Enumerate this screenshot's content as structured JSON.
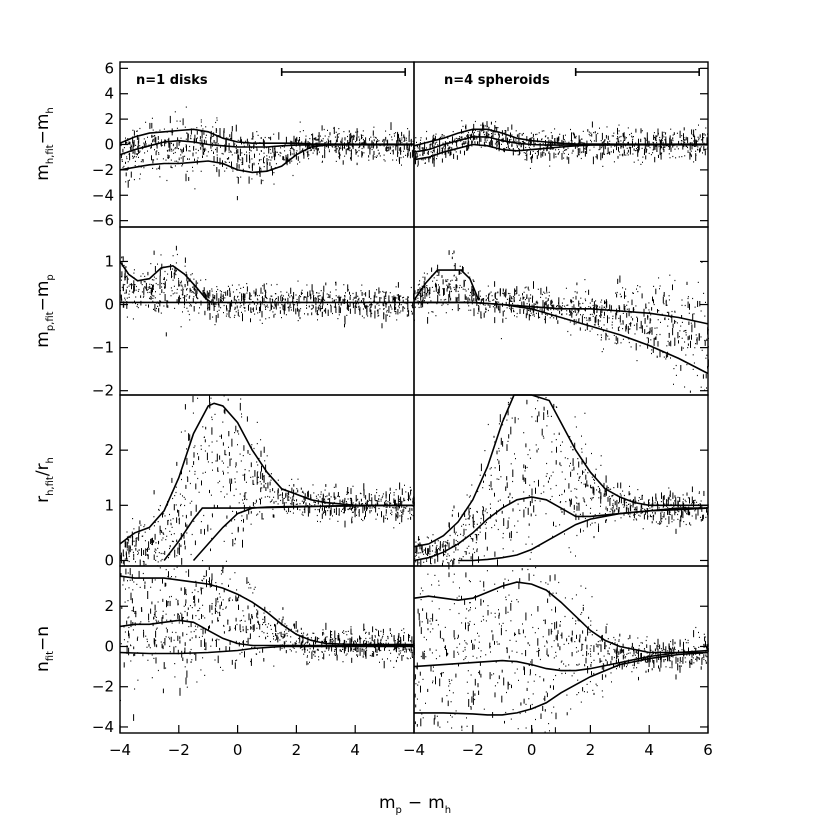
{
  "figure": {
    "xlabel": "m",
    "xlabel_sub_p": "p",
    "xlabel_minus": "−",
    "xlabel_sub_h": "h",
    "colors": {
      "ink": "#000000",
      "background": "#ffffff"
    }
  },
  "chart_data": [
    {
      "type": "scatter",
      "column": "left",
      "row": 1,
      "title": "n=1 disks",
      "ylabel_main": "m",
      "ylabel_sub": "h,fit",
      "ylabel_tail": "−m",
      "ylabel_tail_sub": "h",
      "xlim": [
        -4,
        6
      ],
      "ylim": [
        -6.5,
        6.5
      ],
      "yticks": [
        -6,
        -4,
        -2,
        0,
        2,
        4,
        6
      ],
      "yticklabels": [
        "−6",
        "−4",
        "−2",
        "0",
        "2",
        "4",
        "6"
      ],
      "errorbar_range": [
        1.5,
        5.7
      ],
      "lines": [
        {
          "x": [
            -4,
            -3.5,
            -3,
            -2.5,
            -2,
            -1.5,
            -1,
            -0.5,
            0,
            0.5,
            1,
            1.5,
            2,
            2.5,
            3,
            4,
            5,
            6
          ],
          "y": [
            0.1,
            0.6,
            0.9,
            1.0,
            1.1,
            1.2,
            1.0,
            0.5,
            0.2,
            0.1,
            0.1,
            0.1,
            0.1,
            0.05,
            0.03,
            0.02,
            0.02,
            0.02
          ]
        },
        {
          "x": [
            -4,
            -3.5,
            -3,
            -2.5,
            -2,
            -1.5,
            -1,
            -0.5,
            0,
            0.5,
            1,
            1.5,
            2,
            2.5,
            3,
            4,
            5,
            6
          ],
          "y": [
            -0.8,
            -0.4,
            -0.1,
            0.2,
            0.3,
            0.2,
            0.0,
            -0.1,
            -0.2,
            -0.2,
            -0.2,
            -0.1,
            -0.05,
            -0.02,
            0,
            0,
            0,
            0
          ]
        },
        {
          "x": [
            -4,
            -3.5,
            -3,
            -2.5,
            -2,
            -1.5,
            -1,
            -0.5,
            0,
            0.5,
            1,
            1.5,
            2,
            2.5,
            3,
            4,
            5,
            6
          ],
          "y": [
            -2.0,
            -1.8,
            -1.6,
            -1.5,
            -1.5,
            -1.4,
            -1.3,
            -1.5,
            -2.0,
            -2.2,
            -2.1,
            -1.7,
            -0.8,
            -0.2,
            -0.05,
            -0.02,
            -0.02,
            -0.02
          ]
        }
      ]
    },
    {
      "type": "scatter",
      "column": "right",
      "row": 1,
      "title": "n=4 spheroids",
      "xlim": [
        -4,
        6
      ],
      "ylim": [
        -6.5,
        6.5
      ],
      "errorbar_range": [
        1.5,
        5.7
      ],
      "lines": [
        {
          "x": [
            -4,
            -3.5,
            -3,
            -2.5,
            -2,
            -1.5,
            -1,
            -0.5,
            0,
            0.5,
            1,
            1.5,
            2,
            3,
            4,
            5,
            6
          ],
          "y": [
            -0.1,
            0.2,
            0.5,
            0.9,
            1.2,
            1.2,
            0.9,
            0.5,
            0.3,
            0.2,
            0.1,
            0.05,
            0.03,
            0.02,
            0.02,
            0.02,
            0.02
          ]
        },
        {
          "x": [
            -4,
            -3.5,
            -3,
            -2.5,
            -2,
            -1.5,
            -1,
            -0.5,
            0,
            0.5,
            1,
            1.5,
            2,
            3,
            4,
            5,
            6
          ],
          "y": [
            -0.6,
            -0.4,
            0.0,
            0.3,
            0.6,
            0.6,
            0.3,
            0.1,
            0.0,
            -0.05,
            -0.05,
            -0.03,
            0,
            0,
            0,
            0,
            0
          ]
        },
        {
          "x": [
            -4,
            -3.5,
            -3,
            -2.5,
            -2,
            -1.5,
            -1,
            -0.5,
            0,
            0.5,
            1,
            1.5,
            2,
            3,
            4,
            5,
            6
          ],
          "y": [
            -1.2,
            -1.0,
            -0.6,
            -0.3,
            0.0,
            -0.1,
            -0.4,
            -0.5,
            -0.4,
            -0.3,
            -0.2,
            -0.1,
            -0.05,
            -0.03,
            -0.02,
            -0.02,
            -0.02
          ]
        }
      ]
    },
    {
      "type": "scatter",
      "column": "left",
      "row": 2,
      "ylabel_main": "m",
      "ylabel_sub": "p,fit",
      "ylabel_tail": "−m",
      "ylabel_tail_sub": "p",
      "xlim": [
        -4,
        6
      ],
      "ylim": [
        -2.1,
        1.8
      ],
      "yticks": [
        -2,
        -1,
        0,
        1
      ],
      "yticklabels": [
        "−2",
        "−1",
        "0",
        "1"
      ],
      "lines": [
        {
          "x": [
            -4,
            -3.7,
            -3.4,
            -3.0,
            -2.6,
            -2.2,
            -1.8,
            -1.4,
            -1.1,
            -0.9
          ],
          "y": [
            1.0,
            0.7,
            0.55,
            0.6,
            0.85,
            0.9,
            0.7,
            0.4,
            0.15,
            0.05
          ]
        },
        {
          "x": [
            -4,
            -2,
            0,
            2,
            4,
            6
          ],
          "y": [
            0.05,
            0.05,
            0.05,
            0.05,
            0.05,
            0.05
          ]
        }
      ]
    },
    {
      "type": "scatter",
      "column": "right",
      "row": 2,
      "xlim": [
        -4,
        6
      ],
      "ylim": [
        -2.1,
        1.8
      ],
      "lines": [
        {
          "x": [
            -4,
            -3.6,
            -3.2,
            -2.8,
            -2.4,
            -2.1,
            -1.8
          ],
          "y": [
            0.1,
            0.5,
            0.8,
            0.8,
            0.8,
            0.6,
            0.1
          ]
        },
        {
          "x": [
            -4,
            -3,
            -2,
            -1,
            0,
            1,
            2,
            3,
            4,
            5,
            6
          ],
          "y": [
            0.05,
            0.05,
            0.05,
            0.0,
            -0.05,
            -0.1,
            -0.1,
            -0.15,
            -0.2,
            -0.3,
            -0.45
          ]
        },
        {
          "x": [
            -4,
            -3,
            -2,
            -1,
            0,
            1,
            2,
            3,
            4,
            5,
            6
          ],
          "y": [
            0.05,
            0.05,
            0.05,
            0.0,
            -0.1,
            -0.3,
            -0.5,
            -0.7,
            -0.95,
            -1.25,
            -1.6
          ]
        }
      ]
    },
    {
      "type": "scatter",
      "column": "left",
      "row": 3,
      "ylabel_main": "r",
      "ylabel_sub": "h,fit",
      "ylabel_tail": "/r",
      "ylabel_tail_sub": "h",
      "xlim": [
        -4,
        6
      ],
      "ylim": [
        -0.1,
        3.0
      ],
      "yticks": [
        0,
        1,
        2
      ],
      "yticklabels": [
        "0",
        "1",
        "2"
      ],
      "lines": [
        {
          "x": [
            -4,
            -3.5,
            -3,
            -2.5,
            -2,
            -1.5,
            -1,
            -0.8,
            -0.5,
            0,
            0.5,
            1,
            1.5,
            2,
            2.5,
            3,
            4,
            5,
            6
          ],
          "y": [
            0.3,
            0.5,
            0.6,
            0.9,
            1.5,
            2.3,
            2.8,
            2.85,
            2.8,
            2.5,
            2.0,
            1.6,
            1.3,
            1.2,
            1.1,
            1.05,
            1.0,
            1.0,
            1.0
          ]
        },
        {
          "x": [
            -2.5,
            -2,
            -1.5,
            -1.2,
            -1,
            0,
            2,
            4,
            6
          ],
          "y": [
            0.0,
            0.35,
            0.75,
            0.95,
            0.95,
            0.95,
            0.97,
            1.0,
            1.0
          ]
        },
        {
          "x": [
            -1.5,
            -1,
            -0.5,
            0,
            0.5,
            1,
            2,
            4,
            6
          ],
          "y": [
            0.0,
            0.3,
            0.6,
            0.85,
            0.95,
            0.97,
            0.98,
            0.99,
            1.0
          ]
        }
      ]
    },
    {
      "type": "scatter",
      "column": "right",
      "row": 3,
      "xlim": [
        -4,
        6
      ],
      "ylim": [
        -0.1,
        3.0
      ],
      "lines": [
        {
          "x": [
            -4,
            -3.5,
            -3,
            -2.5,
            -2,
            -1.5,
            -1,
            -0.6,
            0,
            0.6,
            1,
            1.5,
            2,
            2.5,
            3,
            3.5,
            4,
            5,
            6
          ],
          "y": [
            0.25,
            0.3,
            0.45,
            0.7,
            1.1,
            1.7,
            2.5,
            3.0,
            3.0,
            2.9,
            2.5,
            2.0,
            1.6,
            1.3,
            1.15,
            1.05,
            1.0,
            1.0,
            1.0
          ]
        },
        {
          "x": [
            -4,
            -3.5,
            -3,
            -2.5,
            -2,
            -1.5,
            -1,
            -0.5,
            0,
            0.5,
            1,
            1.5,
            2,
            3,
            4,
            5,
            6
          ],
          "y": [
            0.0,
            0.05,
            0.15,
            0.3,
            0.5,
            0.75,
            0.95,
            1.1,
            1.15,
            1.1,
            0.95,
            0.8,
            0.8,
            0.85,
            0.9,
            0.95,
            0.95
          ]
        },
        {
          "x": [
            -2.5,
            -2,
            -1.5,
            -1,
            -0.5,
            0,
            0.5,
            1,
            1.5,
            2,
            3,
            4,
            5,
            6
          ],
          "y": [
            0.0,
            0.0,
            0.02,
            0.05,
            0.1,
            0.2,
            0.35,
            0.5,
            0.65,
            0.75,
            0.85,
            0.9,
            0.92,
            0.95
          ]
        }
      ]
    },
    {
      "type": "scatter",
      "column": "left",
      "row": 4,
      "ylabel_main": "n",
      "ylabel_sub": "fit",
      "ylabel_tail": "−n",
      "ylabel_tail_sub": "",
      "xlim": [
        -4,
        6
      ],
      "ylim": [
        -4.3,
        4.0
      ],
      "yticks": [
        -4,
        -2,
        0,
        2
      ],
      "yticklabels": [
        "−4",
        "−2",
        "0",
        "2"
      ],
      "xticks": [
        -4,
        -2,
        0,
        2,
        4
      ],
      "xticklabels": [
        "−4",
        "−2",
        "0",
        "2",
        "4"
      ],
      "lines": [
        {
          "x": [
            -4,
            -3.5,
            -3,
            -2.5,
            -2,
            -1.5,
            -1,
            -0.5,
            0,
            0.5,
            1,
            1.5,
            2,
            2.5,
            3,
            4,
            5,
            6
          ],
          "y": [
            3.5,
            3.4,
            3.4,
            3.4,
            3.3,
            3.2,
            3.1,
            2.9,
            2.6,
            2.2,
            1.7,
            1.1,
            0.6,
            0.3,
            0.15,
            0.1,
            0.1,
            0.1
          ]
        },
        {
          "x": [
            -4,
            -3.5,
            -3,
            -2.5,
            -2,
            -1.5,
            -1,
            -0.5,
            0,
            0.5,
            1,
            1.5,
            2,
            3,
            4,
            5,
            6
          ],
          "y": [
            1.0,
            1.1,
            1.1,
            1.2,
            1.3,
            1.2,
            0.8,
            0.4,
            0.15,
            0.05,
            0.05,
            0.05,
            0.05,
            0.05,
            0.05,
            0.05,
            0.05
          ]
        },
        {
          "x": [
            -4,
            -3,
            -2,
            -1,
            0,
            0.5,
            1,
            1.5,
            2,
            3,
            4,
            5,
            6
          ],
          "y": [
            -0.3,
            -0.35,
            -0.35,
            -0.3,
            -0.2,
            -0.1,
            -0.05,
            0.0,
            0.0,
            0.0,
            0.0,
            0.0,
            0.0
          ]
        }
      ]
    },
    {
      "type": "scatter",
      "column": "right",
      "row": 4,
      "xlim": [
        -4,
        6
      ],
      "ylim": [
        -4.3,
        4.0
      ],
      "xticks": [
        -4,
        -2,
        0,
        2,
        4,
        6
      ],
      "xticklabels": [
        "−4",
        "−2",
        "0",
        "2",
        "4",
        "6"
      ],
      "lines": [
        {
          "x": [
            -4,
            -3.5,
            -3,
            -2.5,
            -2,
            -1.5,
            -1,
            -0.5,
            0,
            0.5,
            1,
            1.5,
            2,
            2.5,
            3,
            4,
            5,
            6
          ],
          "y": [
            2.4,
            2.5,
            2.4,
            2.3,
            2.4,
            2.7,
            3.0,
            3.2,
            3.1,
            2.8,
            2.2,
            1.5,
            0.8,
            0.3,
            0.0,
            -0.3,
            -0.3,
            -0.3
          ]
        },
        {
          "x": [
            -4,
            -3,
            -2,
            -1.5,
            -1,
            -0.5,
            0,
            0.5,
            1,
            1.5,
            2,
            3,
            4,
            5,
            6
          ],
          "y": [
            -1.0,
            -0.9,
            -0.8,
            -0.75,
            -0.7,
            -0.75,
            -0.9,
            -1.1,
            -1.2,
            -1.2,
            -1.1,
            -0.8,
            -0.5,
            -0.3,
            -0.2
          ]
        },
        {
          "x": [
            -4,
            -3,
            -2,
            -1.5,
            -1,
            -0.5,
            0,
            0.5,
            1,
            1.5,
            2,
            3,
            4,
            5,
            6
          ],
          "y": [
            -3.3,
            -3.3,
            -3.35,
            -3.4,
            -3.4,
            -3.3,
            -3.1,
            -2.8,
            -2.3,
            -1.9,
            -1.5,
            -0.9,
            -0.6,
            -0.4,
            -0.3
          ]
        }
      ]
    }
  ]
}
